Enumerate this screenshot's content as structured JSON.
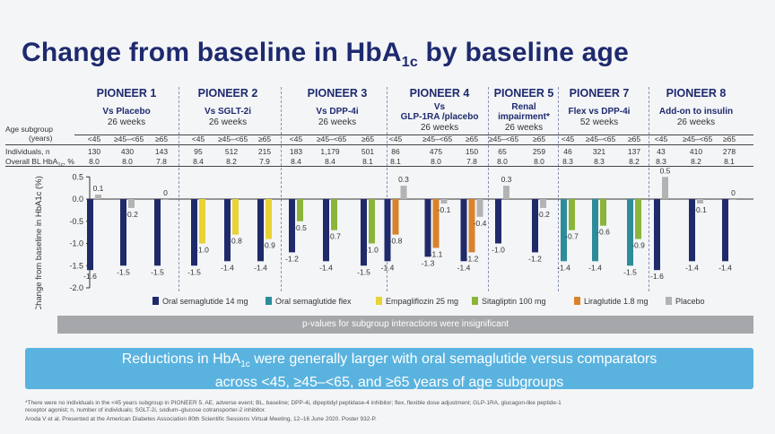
{
  "title_main": "Change from baseline in HbA",
  "title_sub": "1c",
  "title_tail": " by baseline age",
  "row_labels": {
    "age_subgroup_line1": "Age subgroup",
    "age_subgroup_line2": "(years)",
    "individuals": "Individuals, n",
    "overall_bl": "Overall BL HbA",
    "overall_bl_sub": "1c",
    "overall_bl_tail": ", %"
  },
  "age_groups": [
    "<45",
    "≥45–<65",
    "≥65"
  ],
  "trials": [
    {
      "name": "PIONEER 1",
      "comparator": "Vs Placebo",
      "comparator2": "",
      "weeks": "26 weeks",
      "n": [
        "130",
        "430",
        "143"
      ],
      "bl": [
        "8.0",
        "8.0",
        "7.8"
      ]
    },
    {
      "name": "PIONEER 2",
      "comparator": "Vs SGLT-2i",
      "comparator2": "",
      "weeks": "26 weeks",
      "n": [
        "95",
        "512",
        "215"
      ],
      "bl": [
        "8.4",
        "8.2",
        "7.9"
      ]
    },
    {
      "name": "PIONEER 3",
      "comparator": "Vs DPP-4i",
      "comparator2": "",
      "weeks": "26 weeks",
      "n": [
        "183",
        "1,179",
        "501"
      ],
      "bl": [
        "8.4",
        "8.4",
        "8.1"
      ]
    },
    {
      "name": "PIONEER 4",
      "comparator": "Vs",
      "comparator2": "GLP-1RA /placebo",
      "weeks": "26 weeks",
      "n": [
        "86",
        "475",
        "150"
      ],
      "bl": [
        "8.1",
        "8.0",
        "7.8"
      ]
    },
    {
      "name": "PIONEER 5",
      "comparator": "Renal",
      "comparator2": "impairment*",
      "weeks": "26 weeks",
      "n": [
        "",
        "65",
        "259"
      ],
      "bl": [
        "",
        "8.0",
        "8.0"
      ]
    },
    {
      "name": "PIONEER 7",
      "comparator": "Flex vs DPP-4i",
      "comparator2": "",
      "weeks": "52 weeks",
      "n": [
        "46",
        "321",
        "137"
      ],
      "bl": [
        "8.3",
        "8.3",
        "8.2"
      ]
    },
    {
      "name": "PIONEER 8",
      "comparator": "Add-on to insulin",
      "comparator2": "",
      "weeks": "26 weeks",
      "n": [
        "43",
        "410",
        "278"
      ],
      "bl": [
        "8.3",
        "8.2",
        "8.1"
      ]
    }
  ],
  "colors": {
    "oral_sema_14": "#1f2a6b",
    "oral_sema_flex": "#2e8c9a",
    "empagliflozin": "#e8d335",
    "sitagliptin": "#8bb53a",
    "liraglutide": "#d9822b",
    "placebo": "#b3b3b3"
  },
  "chart_data": {
    "type": "bar",
    "ylabel": "Change from baseline in HbA1c (%)",
    "ylim": [
      -2.0,
      0.5
    ],
    "yticks": [
      "0.5",
      "0.0",
      "-0.5",
      "-1.0",
      "-1.5",
      "-2.0"
    ],
    "legend": [
      {
        "key": "oral_sema_14",
        "label": "Oral semaglutide 14 mg"
      },
      {
        "key": "oral_sema_flex",
        "label": "Oral semaglutide flex"
      },
      {
        "key": "empagliflozin",
        "label": "Empagliflozin 25 mg"
      },
      {
        "key": "sitagliptin",
        "label": "Sitagliptin 100 mg"
      },
      {
        "key": "liraglutide",
        "label": "Liraglutide 1.8 mg"
      },
      {
        "key": "placebo",
        "label": "Placebo"
      }
    ],
    "bars": [
      {
        "trial": "PIONEER 1",
        "age": "<45",
        "series": "oral_sema_14",
        "value": -1.6,
        "label": "-1.6"
      },
      {
        "trial": "PIONEER 1",
        "age": "<45",
        "series": "placebo",
        "value": 0.1,
        "label": "0.1"
      },
      {
        "trial": "PIONEER 1",
        "age": "≥45–<65",
        "series": "oral_sema_14",
        "value": -1.5,
        "label": "-1.5"
      },
      {
        "trial": "PIONEER 1",
        "age": "≥45–<65",
        "series": "placebo",
        "value": -0.2,
        "label": "-0.2"
      },
      {
        "trial": "PIONEER 1",
        "age": "≥65",
        "series": "oral_sema_14",
        "value": -1.5,
        "label": "-1.5"
      },
      {
        "trial": "PIONEER 1",
        "age": "≥65",
        "series": "placebo",
        "value": 0.0,
        "label": "0"
      },
      {
        "trial": "PIONEER 2",
        "age": "<45",
        "series": "oral_sema_14",
        "value": -1.5,
        "label": "-1.5"
      },
      {
        "trial": "PIONEER 2",
        "age": "<45",
        "series": "empagliflozin",
        "value": -1.0,
        "label": "-1.0"
      },
      {
        "trial": "PIONEER 2",
        "age": "≥45–<65",
        "series": "oral_sema_14",
        "value": -1.4,
        "label": "-1.4"
      },
      {
        "trial": "PIONEER 2",
        "age": "≥45–<65",
        "series": "empagliflozin",
        "value": -0.8,
        "label": "-0.8"
      },
      {
        "trial": "PIONEER 2",
        "age": "≥65",
        "series": "oral_sema_14",
        "value": -1.4,
        "label": "-1.4"
      },
      {
        "trial": "PIONEER 2",
        "age": "≥65",
        "series": "empagliflozin",
        "value": -0.9,
        "label": "-0.9"
      },
      {
        "trial": "PIONEER 3",
        "age": "<45",
        "series": "oral_sema_14",
        "value": -1.2,
        "label": "-1.2"
      },
      {
        "trial": "PIONEER 3",
        "age": "<45",
        "series": "sitagliptin",
        "value": -0.5,
        "label": "-0.5"
      },
      {
        "trial": "PIONEER 3",
        "age": "≥45–<65",
        "series": "oral_sema_14",
        "value": -1.4,
        "label": "-1.4"
      },
      {
        "trial": "PIONEER 3",
        "age": "≥45–<65",
        "series": "sitagliptin",
        "value": -0.7,
        "label": "-0.7"
      },
      {
        "trial": "PIONEER 3",
        "age": "≥65",
        "series": "oral_sema_14",
        "value": -1.5,
        "label": "-1.5"
      },
      {
        "trial": "PIONEER 3",
        "age": "≥65",
        "series": "sitagliptin",
        "value": -1.0,
        "label": "-1.0"
      },
      {
        "trial": "PIONEER 4",
        "age": "<45",
        "series": "oral_sema_14",
        "value": -1.4,
        "label": "-1.4"
      },
      {
        "trial": "PIONEER 4",
        "age": "<45",
        "series": "liraglutide",
        "value": -0.8,
        "label": "-0.8"
      },
      {
        "trial": "PIONEER 4",
        "age": "<45",
        "series": "placebo",
        "value": 0.3,
        "label": "0.3"
      },
      {
        "trial": "PIONEER 4",
        "age": "≥45–<65",
        "series": "oral_sema_14",
        "value": -1.3,
        "label": "-1.3"
      },
      {
        "trial": "PIONEER 4",
        "age": "≥45–<65",
        "series": "liraglutide",
        "value": -1.1,
        "label": "-1.1"
      },
      {
        "trial": "PIONEER 4",
        "age": "≥45–<65",
        "series": "placebo",
        "value": -0.1,
        "label": "-0.1"
      },
      {
        "trial": "PIONEER 4",
        "age": "≥65",
        "series": "oral_sema_14",
        "value": -1.4,
        "label": "-1.4"
      },
      {
        "trial": "PIONEER 4",
        "age": "≥65",
        "series": "liraglutide",
        "value": -1.2,
        "label": "-1.2"
      },
      {
        "trial": "PIONEER 4",
        "age": "≥65",
        "series": "placebo",
        "value": -0.4,
        "label": "-0.4"
      },
      {
        "trial": "PIONEER 5",
        "age": "≥45–<65",
        "series": "oral_sema_14",
        "value": -1.0,
        "label": "-1.0"
      },
      {
        "trial": "PIONEER 5",
        "age": "≥45–<65",
        "series": "placebo",
        "value": 0.3,
        "label": "0.3"
      },
      {
        "trial": "PIONEER 5",
        "age": "≥65",
        "series": "oral_sema_14",
        "value": -1.2,
        "label": "-1.2"
      },
      {
        "trial": "PIONEER 5",
        "age": "≥65",
        "series": "placebo",
        "value": -0.2,
        "label": "-0.2"
      },
      {
        "trial": "PIONEER 7",
        "age": "<45",
        "series": "oral_sema_flex",
        "value": -1.4,
        "label": "-1.4"
      },
      {
        "trial": "PIONEER 7",
        "age": "<45",
        "series": "sitagliptin",
        "value": -0.7,
        "label": "-0.7"
      },
      {
        "trial": "PIONEER 7",
        "age": "≥45–<65",
        "series": "oral_sema_flex",
        "value": -1.4,
        "label": "-1.4"
      },
      {
        "trial": "PIONEER 7",
        "age": "≥45–<65",
        "series": "sitagliptin",
        "value": -0.6,
        "label": "-0.6"
      },
      {
        "trial": "PIONEER 7",
        "age": "≥65",
        "series": "oral_sema_flex",
        "value": -1.5,
        "label": "-1.5"
      },
      {
        "trial": "PIONEER 7",
        "age": "≥65",
        "series": "sitagliptin",
        "value": -0.9,
        "label": "-0.9"
      },
      {
        "trial": "PIONEER 8",
        "age": "<45",
        "series": "oral_sema_14",
        "value": -1.6,
        "label": "-1.6"
      },
      {
        "trial": "PIONEER 8",
        "age": "<45",
        "series": "placebo",
        "value": 0.5,
        "label": "0.5"
      },
      {
        "trial": "PIONEER 8",
        "age": "≥45–<65",
        "series": "oral_sema_14",
        "value": -1.4,
        "label": "-1.4"
      },
      {
        "trial": "PIONEER 8",
        "age": "≥45–<65",
        "series": "placebo",
        "value": -0.1,
        "label": "-0.1"
      },
      {
        "trial": "PIONEER 8",
        "age": "≥65",
        "series": "oral_sema_14",
        "value": -1.4,
        "label": "-1.4"
      },
      {
        "trial": "PIONEER 8",
        "age": "≥65",
        "series": "placebo",
        "value": 0.0,
        "label": "0"
      }
    ]
  },
  "pvalue_note": "p-values for subgroup interactions were insignificant",
  "banner": {
    "line1_a": "Reductions in HbA",
    "line1_sub": "1c",
    "line1_b": " were generally larger with oral semaglutide versus comparators",
    "line2": "across <45, ≥45–<65, and ≥65 years of age subgroups"
  },
  "footnotes": {
    "line1": "*There were no individuals in the <45 years subgroup in PIONEER 5. AE, adverse event; BL, baseline; DPP-4i, dipeptidyl peptidase-4 inhibitor; flex, flexible dose adjustment; GLP-1RA, glucagon-like peptide-1",
    "line2": "receptor agonist; n, number of individuals; SGLT-2i, sodium–glucose cotransporter-2 inhibitor.",
    "line3": "Aroda V et al. Presented at the American Diabetes Association 80th Scientific Sessions Virtual Meeting, 12–16 June 2020. Poster 932-P."
  }
}
